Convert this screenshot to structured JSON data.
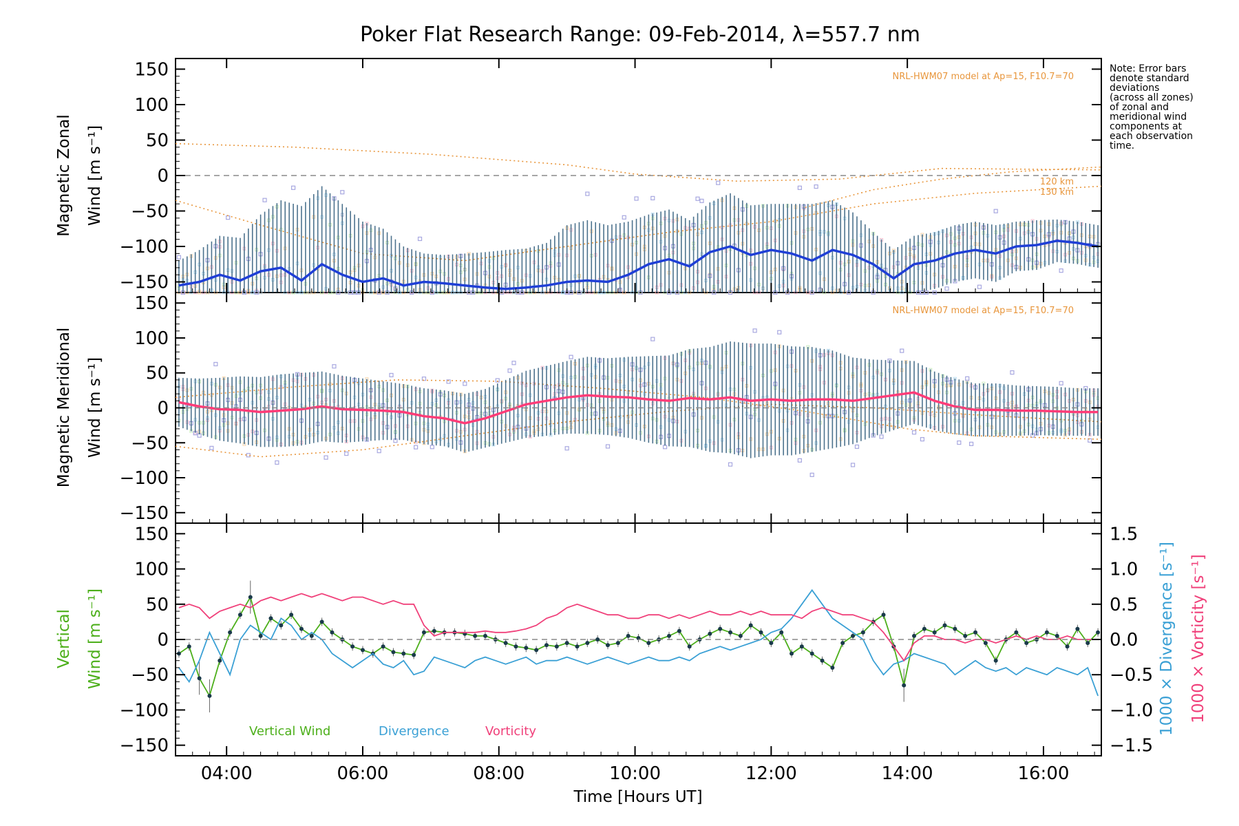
{
  "chart_data": [
    {
      "type": "line",
      "panel": "zonal",
      "title": "Poker Flat Research Range: 09-Feb-2014, λ=557.7 nm",
      "ylabel_line1": "Magnetic Zonal",
      "ylabel_line2": "Wind [m s⁻¹]",
      "ylim": [
        -165,
        165
      ],
      "yticks": [
        150,
        100,
        50,
        0,
        -50,
        -100,
        -150
      ],
      "xlim": [
        3.25,
        16.85
      ],
      "xticks": [
        "04:00",
        "06:00",
        "08:00",
        "10:00",
        "12:00",
        "14:00",
        "16:00"
      ],
      "xtick_hours": [
        4,
        6,
        8,
        10,
        12,
        14,
        16
      ],
      "model_label": "NRL-HWM07 model at Ap=15, F10.7=70",
      "model_heights": [
        "120 km",
        "130 km"
      ],
      "series": [
        {
          "color": "#1f3fd6",
          "x": [
            3.3,
            3.6,
            3.9,
            4.2,
            4.5,
            4.8,
            5.1,
            5.4,
            5.7,
            6.0,
            6.3,
            6.6,
            6.9,
            7.2,
            7.5,
            7.8,
            8.1,
            8.4,
            8.7,
            9.0,
            9.3,
            9.6,
            9.9,
            10.2,
            10.5,
            10.8,
            11.1,
            11.4,
            11.7,
            12.0,
            12.3,
            12.6,
            12.9,
            13.2,
            13.5,
            13.8,
            14.1,
            14.4,
            14.7,
            15.0,
            15.3,
            15.6,
            15.9,
            16.2,
            16.5,
            16.8
          ],
          "y": [
            -155,
            -150,
            -140,
            -148,
            -135,
            -130,
            -148,
            -125,
            -140,
            -150,
            -145,
            -155,
            -150,
            -152,
            -155,
            -158,
            -160,
            -158,
            -155,
            -150,
            -148,
            -150,
            -140,
            -125,
            -118,
            -128,
            -108,
            -100,
            -112,
            -105,
            -110,
            -120,
            -105,
            -112,
            -125,
            -145,
            -125,
            -120,
            -110,
            -105,
            -110,
            -100,
            -98,
            -92,
            -95,
            -100
          ]
        }
      ],
      "errorbar_sd": [
        35,
        45,
        55,
        60,
        80,
        95,
        105,
        110,
        100,
        85,
        70,
        55,
        40,
        40,
        45,
        50,
        55,
        55,
        60,
        80,
        85,
        80,
        75,
        70,
        70,
        65,
        70,
        75,
        70,
        65,
        70,
        80,
        70,
        60,
        45,
        40,
        40,
        40,
        40,
        40,
        40,
        35,
        35,
        30,
        30,
        30
      ]
    },
    {
      "type": "line",
      "panel": "meridional",
      "ylabel_line1": "Magnetic Meridional",
      "ylabel_line2": "Wind [m s⁻¹]",
      "ylim": [
        -165,
        165
      ],
      "yticks": [
        150,
        100,
        50,
        0,
        -50,
        -100,
        -150
      ],
      "model_label": "NRL-HWM07 model at Ap=15, F10.7=70",
      "series": [
        {
          "color": "#ff3c78",
          "x": [
            3.3,
            3.6,
            3.9,
            4.2,
            4.5,
            4.8,
            5.1,
            5.4,
            5.7,
            6.0,
            6.3,
            6.6,
            6.9,
            7.2,
            7.5,
            7.8,
            8.1,
            8.4,
            8.7,
            9.0,
            9.3,
            9.6,
            9.9,
            10.2,
            10.5,
            10.8,
            11.1,
            11.4,
            11.7,
            12.0,
            12.3,
            12.6,
            12.9,
            13.2,
            13.5,
            13.8,
            14.1,
            14.4,
            14.7,
            15.0,
            15.3,
            15.6,
            15.9,
            16.2,
            16.5,
            16.8
          ],
          "y": [
            8,
            2,
            -2,
            -3,
            -6,
            -4,
            -2,
            2,
            -2,
            -3,
            -4,
            -6,
            -12,
            -15,
            -22,
            -15,
            -5,
            5,
            10,
            15,
            18,
            16,
            15,
            12,
            10,
            14,
            12,
            15,
            10,
            12,
            10,
            12,
            12,
            10,
            14,
            18,
            22,
            10,
            2,
            -3,
            -3,
            -4,
            -4,
            -5,
            -6,
            -6
          ]
        }
      ],
      "errorbar_sd": [
        35,
        40,
        45,
        48,
        50,
        52,
        52,
        50,
        48,
        45,
        42,
        40,
        40,
        40,
        42,
        42,
        45,
        48,
        50,
        52,
        55,
        55,
        58,
        62,
        65,
        70,
        75,
        80,
        82,
        80,
        78,
        75,
        70,
        62,
        55,
        50,
        45,
        42,
        40,
        38,
        38,
        36,
        35,
        35,
        34,
        34
      ]
    },
    {
      "type": "line",
      "panel": "vertical",
      "ylabel_line1": "Vertical",
      "ylabel_line2": "Wind [m s⁻¹]",
      "y2label_div": "1000 × Divergence [s⁻¹]",
      "y2label_vort": "1000 × Vorticity [s⁻¹]",
      "ylim": [
        -165,
        165
      ],
      "yticks": [
        150,
        100,
        50,
        0,
        -50,
        -100,
        -150
      ],
      "y2lim": [
        -1.65,
        1.65
      ],
      "y2ticks": [
        "1.5",
        "1.0",
        "0.5",
        "0.0",
        "−0.5",
        "−1.0",
        "−1.5"
      ],
      "y2tick_values": [
        1.5,
        1.0,
        0.5,
        0.0,
        -0.5,
        -1.0,
        -1.5
      ],
      "legend": [
        "Vertical Wind",
        "Divergence",
        "Vorticity"
      ],
      "legend_placement": "bottom-left",
      "series": [
        {
          "name": "Vertical Wind",
          "color": "#4caf1a",
          "axis": "left",
          "x": [
            3.3,
            3.45,
            3.6,
            3.75,
            3.9,
            4.05,
            4.2,
            4.35,
            4.5,
            4.65,
            4.8,
            4.95,
            5.1,
            5.25,
            5.4,
            5.55,
            5.7,
            5.85,
            6.0,
            6.15,
            6.3,
            6.45,
            6.6,
            6.75,
            6.9,
            7.05,
            7.2,
            7.35,
            7.5,
            7.65,
            7.8,
            7.95,
            8.1,
            8.25,
            8.4,
            8.55,
            8.7,
            8.85,
            9.0,
            9.15,
            9.3,
            9.45,
            9.6,
            9.75,
            9.9,
            10.05,
            10.2,
            10.35,
            10.5,
            10.65,
            10.8,
            10.95,
            11.1,
            11.25,
            11.4,
            11.55,
            11.7,
            11.85,
            12.0,
            12.15,
            12.3,
            12.45,
            12.6,
            12.75,
            12.9,
            13.05,
            13.2,
            13.35,
            13.5,
            13.65,
            13.8,
            13.95,
            14.1,
            14.25,
            14.4,
            14.55,
            14.7,
            14.85,
            15.0,
            15.15,
            15.3,
            15.45,
            15.6,
            15.75,
            15.9,
            16.05,
            16.2,
            16.35,
            16.5,
            16.65,
            16.8
          ],
          "y": [
            -20,
            -10,
            -55,
            -80,
            -30,
            10,
            35,
            60,
            5,
            30,
            20,
            35,
            15,
            5,
            25,
            10,
            0,
            -10,
            -15,
            -20,
            -10,
            -18,
            -20,
            -22,
            10,
            12,
            10,
            10,
            8,
            5,
            5,
            0,
            -5,
            -10,
            -12,
            -15,
            -8,
            -10,
            -5,
            -10,
            -5,
            0,
            -8,
            -5,
            5,
            2,
            -5,
            0,
            5,
            12,
            -10,
            0,
            8,
            15,
            10,
            5,
            20,
            10,
            -5,
            10,
            -20,
            -10,
            -20,
            -30,
            -40,
            -5,
            5,
            10,
            25,
            35,
            -10,
            -65,
            5,
            15,
            10,
            20,
            15,
            5,
            10,
            -5,
            -30,
            0,
            10,
            -5,
            0,
            10,
            5,
            -10,
            15,
            -5,
            10
          ]
        },
        {
          "name": "Divergence",
          "color": "#3aa0d5",
          "axis": "right",
          "x": [
            3.3,
            3.45,
            3.6,
            3.75,
            3.9,
            4.05,
            4.2,
            4.35,
            4.5,
            4.65,
            4.8,
            4.95,
            5.1,
            5.25,
            5.4,
            5.55,
            5.7,
            5.85,
            6.0,
            6.15,
            6.3,
            6.45,
            6.6,
            6.75,
            6.9,
            7.05,
            7.2,
            7.35,
            7.5,
            7.65,
            7.8,
            7.95,
            8.1,
            8.25,
            8.4,
            8.55,
            8.7,
            8.85,
            9.0,
            9.15,
            9.3,
            9.45,
            9.6,
            9.75,
            9.9,
            10.05,
            10.2,
            10.35,
            10.5,
            10.65,
            10.8,
            10.95,
            11.1,
            11.25,
            11.4,
            11.55,
            11.7,
            11.85,
            12.0,
            12.15,
            12.3,
            12.45,
            12.6,
            12.75,
            12.9,
            13.05,
            13.2,
            13.35,
            13.5,
            13.65,
            13.8,
            13.95,
            14.1,
            14.25,
            14.4,
            14.55,
            14.7,
            14.85,
            15.0,
            15.15,
            15.3,
            15.45,
            15.6,
            15.75,
            15.9,
            16.05,
            16.2,
            16.35,
            16.5,
            16.65,
            16.8
          ],
          "y": [
            -0.4,
            -0.6,
            -0.3,
            0.1,
            -0.2,
            -0.5,
            0.0,
            0.2,
            0.1,
            0.0,
            0.3,
            0.2,
            0.0,
            0.1,
            0.0,
            -0.2,
            -0.3,
            -0.4,
            -0.3,
            -0.2,
            -0.35,
            -0.4,
            -0.3,
            -0.5,
            -0.45,
            -0.25,
            -0.3,
            -0.35,
            -0.4,
            -0.3,
            -0.25,
            -0.3,
            -0.35,
            -0.3,
            -0.25,
            -0.35,
            -0.3,
            -0.3,
            -0.25,
            -0.3,
            -0.35,
            -0.3,
            -0.25,
            -0.3,
            -0.35,
            -0.3,
            -0.25,
            -0.3,
            -0.3,
            -0.25,
            -0.3,
            -0.2,
            -0.15,
            -0.1,
            -0.15,
            -0.1,
            -0.05,
            0.0,
            0.1,
            0.15,
            0.3,
            0.5,
            0.7,
            0.5,
            0.3,
            0.2,
            0.1,
            0.0,
            -0.3,
            -0.5,
            -0.35,
            -0.3,
            -0.2,
            -0.25,
            -0.3,
            -0.35,
            -0.5,
            -0.4,
            -0.3,
            -0.4,
            -0.45,
            -0.4,
            -0.5,
            -0.4,
            -0.45,
            -0.5,
            -0.4,
            -0.45,
            -0.5,
            -0.4,
            -0.8
          ]
        },
        {
          "name": "Vorticity",
          "color": "#f0407a",
          "axis": "right",
          "x": [
            3.3,
            3.45,
            3.6,
            3.75,
            3.9,
            4.05,
            4.2,
            4.35,
            4.5,
            4.65,
            4.8,
            4.95,
            5.1,
            5.25,
            5.4,
            5.55,
            5.7,
            5.85,
            6.0,
            6.15,
            6.3,
            6.45,
            6.6,
            6.75,
            6.9,
            7.05,
            7.2,
            7.35,
            7.5,
            7.65,
            7.8,
            7.95,
            8.1,
            8.25,
            8.4,
            8.55,
            8.7,
            8.85,
            9.0,
            9.15,
            9.3,
            9.45,
            9.6,
            9.75,
            9.9,
            10.05,
            10.2,
            10.35,
            10.5,
            10.65,
            10.8,
            10.95,
            11.1,
            11.25,
            11.4,
            11.55,
            11.7,
            11.85,
            12.0,
            12.15,
            12.3,
            12.45,
            12.6,
            12.75,
            12.9,
            13.05,
            13.2,
            13.35,
            13.5,
            13.65,
            13.8,
            13.95,
            14.1,
            14.25,
            14.4,
            14.55,
            14.7,
            14.85,
            15.0,
            15.15,
            15.3,
            15.45,
            15.6,
            15.75,
            15.9,
            16.05,
            16.2,
            16.35,
            16.5,
            16.65,
            16.8
          ],
          "y": [
            0.45,
            0.5,
            0.45,
            0.3,
            0.4,
            0.45,
            0.5,
            0.45,
            0.55,
            0.6,
            0.55,
            0.6,
            0.65,
            0.6,
            0.65,
            0.6,
            0.55,
            0.6,
            0.6,
            0.55,
            0.5,
            0.55,
            0.5,
            0.5,
            0.2,
            0.05,
            0.1,
            0.1,
            0.1,
            0.1,
            0.12,
            0.1,
            0.1,
            0.12,
            0.15,
            0.2,
            0.3,
            0.35,
            0.45,
            0.5,
            0.45,
            0.4,
            0.35,
            0.35,
            0.3,
            0.3,
            0.35,
            0.35,
            0.3,
            0.35,
            0.3,
            0.35,
            0.4,
            0.35,
            0.35,
            0.4,
            0.35,
            0.4,
            0.35,
            0.35,
            0.35,
            0.3,
            0.4,
            0.45,
            0.4,
            0.35,
            0.35,
            0.3,
            0.25,
            0.1,
            -0.1,
            -0.3,
            -0.05,
            0.05,
            0.05,
            0.0,
            0.0,
            -0.05,
            0.0,
            0.0,
            -0.05,
            0.0,
            0.05,
            0.0,
            0.05,
            0.0,
            0.0,
            0.05,
            0.0,
            0.0,
            0.0
          ]
        }
      ]
    }
  ],
  "note": [
    "Note: Error bars",
    "denote standard",
    "deviations",
    "(across all zones)",
    "of zonal and",
    "meridional wind",
    "components at",
    "each observation",
    "time."
  ],
  "xlabel": "Time [Hours UT]",
  "colors": {
    "zonal_mean": "#1f3fd6",
    "meridional_mean": "#ff3c78",
    "errorbar": "#2d5a7a",
    "model": "#e8963c",
    "vertical": "#4caf1a",
    "divergence": "#3aa0d5",
    "vorticity": "#f0407a",
    "scatter": "#a8a8e0"
  }
}
